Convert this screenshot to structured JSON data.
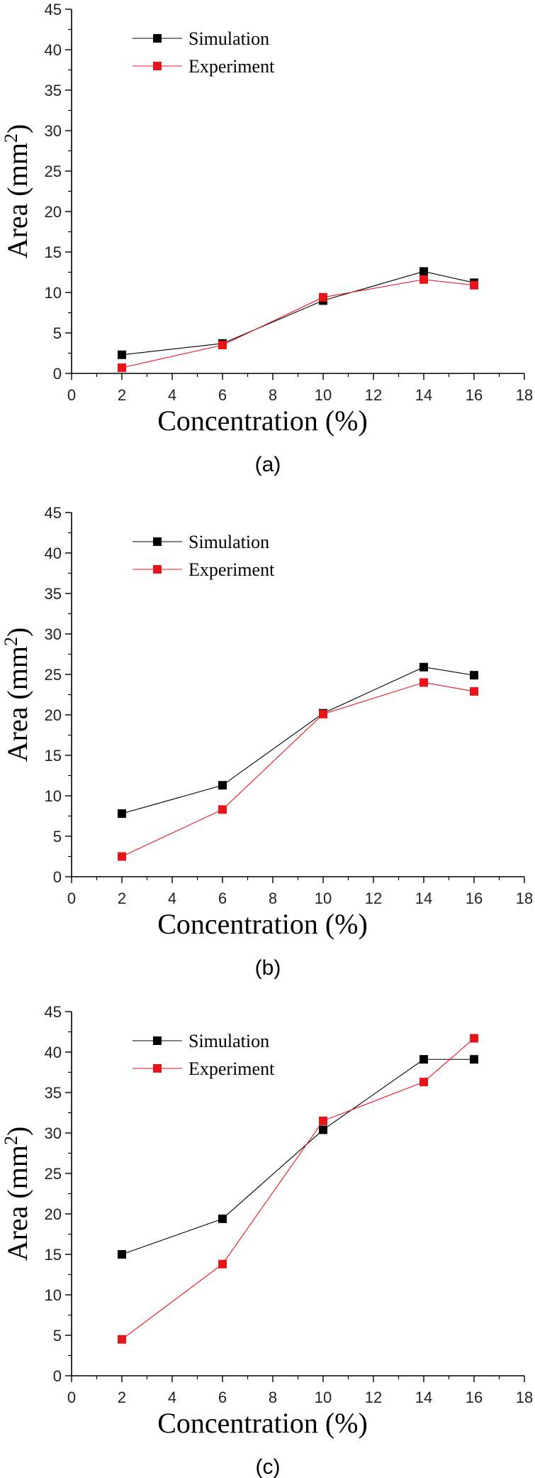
{
  "chart_data": [
    {
      "type": "line",
      "panel_label": "(a)",
      "xlabel": "Concentration (%)",
      "ylabel_main": "Area (mm",
      "ylabel_sup": "2",
      "ylabel_close": ")",
      "xlim": [
        0,
        18
      ],
      "ylim": [
        0,
        45
      ],
      "xticks": [
        0,
        2,
        4,
        6,
        8,
        10,
        12,
        14,
        16,
        18
      ],
      "yticks": [
        0,
        5,
        10,
        15,
        20,
        25,
        30,
        35,
        40,
        45
      ],
      "grid": false,
      "legend_position": "top-left",
      "x": [
        2,
        6,
        10,
        14,
        16
      ],
      "series": [
        {
          "name": "Simulation",
          "color": "#000000",
          "values": [
            2.3,
            3.7,
            9.0,
            12.6,
            11.2
          ]
        },
        {
          "name": "Experiment",
          "color": "#e8141c",
          "values": [
            0.7,
            3.5,
            9.4,
            11.6,
            10.9
          ]
        }
      ]
    },
    {
      "type": "line",
      "panel_label": "(b)",
      "xlabel": "Concentration (%)",
      "ylabel_main": "Area (mm",
      "ylabel_sup": "2",
      "ylabel_close": ")",
      "xlim": [
        0,
        18
      ],
      "ylim": [
        0,
        45
      ],
      "xticks": [
        0,
        2,
        4,
        6,
        8,
        10,
        12,
        14,
        16,
        18
      ],
      "yticks": [
        0,
        5,
        10,
        15,
        20,
        25,
        30,
        35,
        40,
        45
      ],
      "grid": false,
      "legend_position": "top-left",
      "x": [
        2,
        6,
        10,
        14,
        16
      ],
      "series": [
        {
          "name": "Simulation",
          "color": "#000000",
          "values": [
            7.8,
            11.3,
            20.2,
            25.9,
            24.9
          ]
        },
        {
          "name": "Experiment",
          "color": "#e8141c",
          "values": [
            2.5,
            8.3,
            20.1,
            24.0,
            22.9
          ]
        }
      ]
    },
    {
      "type": "line",
      "panel_label": "(c)",
      "xlabel": "Concentration (%)",
      "ylabel_main": "Area (mm",
      "ylabel_sup": "2",
      "ylabel_close": ")",
      "xlim": [
        0,
        18
      ],
      "ylim": [
        0,
        45
      ],
      "xticks": [
        0,
        2,
        4,
        6,
        8,
        10,
        12,
        14,
        16,
        18
      ],
      "yticks": [
        0,
        5,
        10,
        15,
        20,
        25,
        30,
        35,
        40,
        45
      ],
      "grid": false,
      "legend_position": "top-left",
      "x": [
        2,
        6,
        10,
        14,
        16
      ],
      "series": [
        {
          "name": "Simulation",
          "color": "#000000",
          "values": [
            15.0,
            19.4,
            30.4,
            39.1,
            39.1
          ]
        },
        {
          "name": "Experiment",
          "color": "#e8141c",
          "values": [
            4.5,
            13.8,
            31.5,
            36.3,
            41.7
          ]
        }
      ]
    }
  ]
}
